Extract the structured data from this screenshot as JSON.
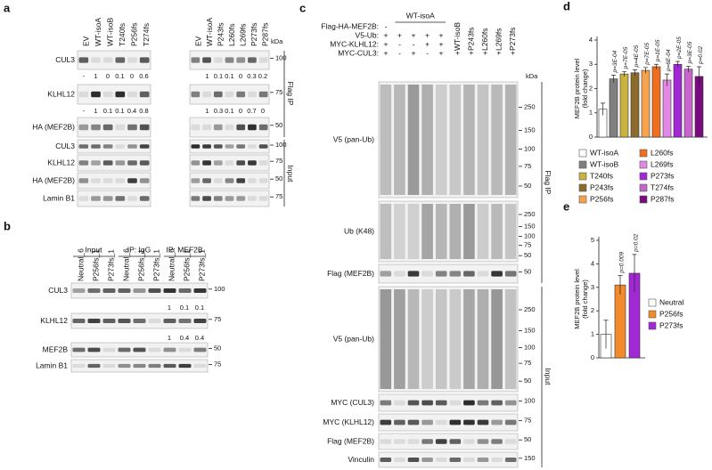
{
  "panel_a": {
    "label": "a",
    "kda": "kDa",
    "flag_ip": "Flag IP",
    "input": "Input",
    "lanes_left": [
      "EV",
      "WT-isoA",
      "WT-isoB",
      "T240fs",
      "P256fs",
      "T274fs"
    ],
    "lanes_right": [
      "EV",
      "WT-isoA",
      "P243fs",
      "L260fs",
      "L269fs",
      "P273fs",
      "P287fs"
    ],
    "rows": [
      {
        "name": "CUL3",
        "marker": 100,
        "quant_left": [
          "-",
          "1",
          "0",
          "0.1",
          "0",
          "0.6"
        ],
        "quant_right": [
          "1",
          "0.1",
          "0.1",
          "0",
          "0.3",
          "0.2"
        ]
      },
      {
        "name": "KLHL12",
        "marker": 75,
        "quant_left": [
          "-",
          "1",
          "0.1",
          "0.1",
          "0.4",
          "0.8"
        ],
        "quant_right": [
          "1",
          "0.3",
          "0.1",
          "0",
          "0.7",
          "0"
        ]
      },
      {
        "name": "HA (MEF2B)",
        "marker": 50
      },
      {
        "name": "CUL3",
        "marker": 100
      },
      {
        "name": "KLHL12",
        "marker": 75
      },
      {
        "name": "HA (MEF2B)",
        "marker": 50
      },
      {
        "name": "Lamin B1",
        "marker": 75
      }
    ]
  },
  "panel_b": {
    "label": "b",
    "groups": [
      "Input",
      "IP: IgG",
      "IP: MEF2B"
    ],
    "lanes": [
      "Neutral_6",
      "P256fs_1",
      "P273fs_1",
      "Neutral_6",
      "P256fs_1",
      "P273fs_1",
      "Neutral_6",
      "P256fs_1",
      "P273fs_1"
    ],
    "rows": [
      {
        "name": "CUL3",
        "marker": 100,
        "quant": [
          "1",
          "0.1",
          "0.1"
        ]
      },
      {
        "name": "KLHL12",
        "marker": 75,
        "quant": [
          "1",
          "0.4",
          "0.4"
        ]
      },
      {
        "name": "MEF2B",
        "marker": 50
      },
      {
        "name": "Lamin B1",
        "marker": 75
      }
    ]
  },
  "panel_c": {
    "label": "c",
    "kda": "kDa",
    "flag_ip": "Flag IP",
    "input": "Input",
    "flag_row": {
      "label": "Flag-HA-MEF2B:",
      "first": "-",
      "span": "WT-isoA"
    },
    "sign_rows": [
      {
        "label": "V5-Ub:",
        "signs": [
          "+",
          "+",
          "+",
          "+",
          "+"
        ]
      },
      {
        "label": "MYC-KLHL12:",
        "signs": [
          "+",
          "-",
          "-",
          "+",
          "+"
        ]
      },
      {
        "label": "MYC-CUL3:",
        "signs": [
          "+",
          "-",
          "+",
          "-",
          "+"
        ]
      }
    ],
    "mutant_lanes": [
      "+WT-isoB",
      "+P243fs",
      "+L260fs",
      "+L269fs",
      "+P273fs"
    ],
    "blots": [
      {
        "name": "V5 (pan-Ub)",
        "markers": [
          250,
          150,
          100,
          75,
          50
        ]
      },
      {
        "name": "Ub (K48)",
        "markers": [
          250,
          150,
          100,
          75,
          50
        ]
      },
      {
        "name": "Flag (MEF2B)",
        "markers": [
          50
        ]
      },
      {
        "name": "V5 (pan-Ub)",
        "markers": [
          250,
          150,
          100,
          75,
          50
        ]
      },
      {
        "name": "MYC (CUL3)",
        "markers": [
          100
        ]
      },
      {
        "name": "MYC (KLHL12)",
        "markers": [
          75
        ]
      },
      {
        "name": "Flag (MEF2B)",
        "markers": [
          50
        ]
      },
      {
        "name": "Vinculin",
        "markers": [
          150
        ]
      }
    ]
  },
  "chart_data": [
    {
      "type": "bar",
      "label": "d",
      "y_label": [
        "MEF2B protein level",
        "(fold change)"
      ],
      "categories": [
        "WT-isoA",
        "WT-isoB",
        "T240fs",
        "P243fs",
        "P256fs",
        "L260fs",
        "L269fs",
        "P273fs",
        "T274fs",
        "P287fs"
      ],
      "values": [
        1.15,
        2.4,
        2.6,
        2.65,
        2.75,
        2.9,
        2.35,
        3.0,
        2.8,
        2.5
      ],
      "errors": [
        0.25,
        0.15,
        0.1,
        0.12,
        0.12,
        0.1,
        0.25,
        0.12,
        0.12,
        0.4
      ],
      "colors": [
        "#ffffff",
        "#808080",
        "#c9b23e",
        "#8b6a2c",
        "#f6a34f",
        "#ef6f1f",
        "#e488e6",
        "#a228d6",
        "#c765cc",
        "#7a0a80"
      ],
      "annotations": [
        null,
        "p=3E-04",
        "p=7E-05",
        "p=4E-05",
        "p=7E-05",
        "p=1E-05",
        "p=6E-04",
        "p=2E-05",
        "p=3E-05",
        "p=0.02"
      ],
      "ylim": [
        0,
        4
      ],
      "yticks": [
        0,
        1,
        2,
        3,
        4
      ]
    },
    {
      "type": "bar",
      "label": "e",
      "y_label": [
        "MEF2B protein level",
        "(fold change)"
      ],
      "categories": [
        "Neutral",
        "P256fs",
        "P273fs"
      ],
      "values": [
        1.0,
        3.1,
        3.6
      ],
      "errors": [
        0.6,
        0.4,
        0.8
      ],
      "colors": [
        "#ffffff",
        "#f28a2e",
        "#a228d6"
      ],
      "annotations": [
        null,
        "p=0.009",
        "p=0.02"
      ],
      "ylim": [
        0,
        5
      ],
      "yticks": [
        0,
        1,
        2,
        3,
        4,
        5
      ]
    }
  ]
}
